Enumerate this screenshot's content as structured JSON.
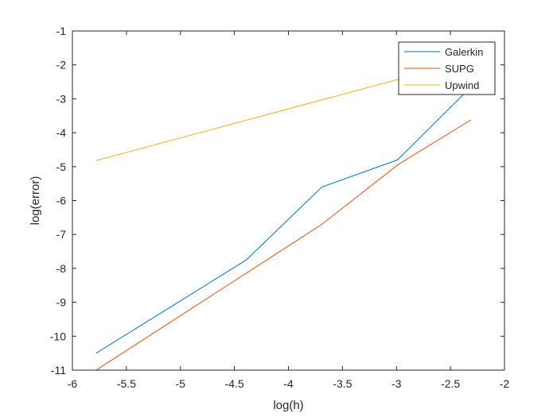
{
  "chart_data": {
    "type": "line",
    "title": "",
    "xlabel": "log(h)",
    "ylabel": "log(error)",
    "xlim": [
      -6,
      -2
    ],
    "ylim": [
      -11,
      -1
    ],
    "xticks": [
      -6,
      -5.5,
      -5,
      -4.5,
      -4,
      -3.5,
      -3,
      -2.5,
      -2
    ],
    "yticks": [
      -11,
      -10,
      -9,
      -8,
      -7,
      -6,
      -5,
      -4,
      -3,
      -2,
      -1
    ],
    "grid": false,
    "legend_position": "top-right",
    "series": [
      {
        "name": "Galerkin",
        "color": "#0072BD",
        "x": [
          -5.78,
          -4.39,
          -3.69,
          -2.99,
          -2.31
        ],
        "y": [
          -10.5,
          -7.75,
          -5.6,
          -4.8,
          -2.65
        ]
      },
      {
        "name": "SUPG",
        "color": "#D95319",
        "x": [
          -5.78,
          -3.69,
          -2.99,
          -2.31
        ],
        "y": [
          -11.0,
          -6.7,
          -4.95,
          -3.62
        ]
      },
      {
        "name": "Upwind",
        "color": "#EDB120",
        "x": [
          -5.78,
          -2.31
        ],
        "y": [
          -4.82,
          -1.85
        ]
      }
    ]
  }
}
